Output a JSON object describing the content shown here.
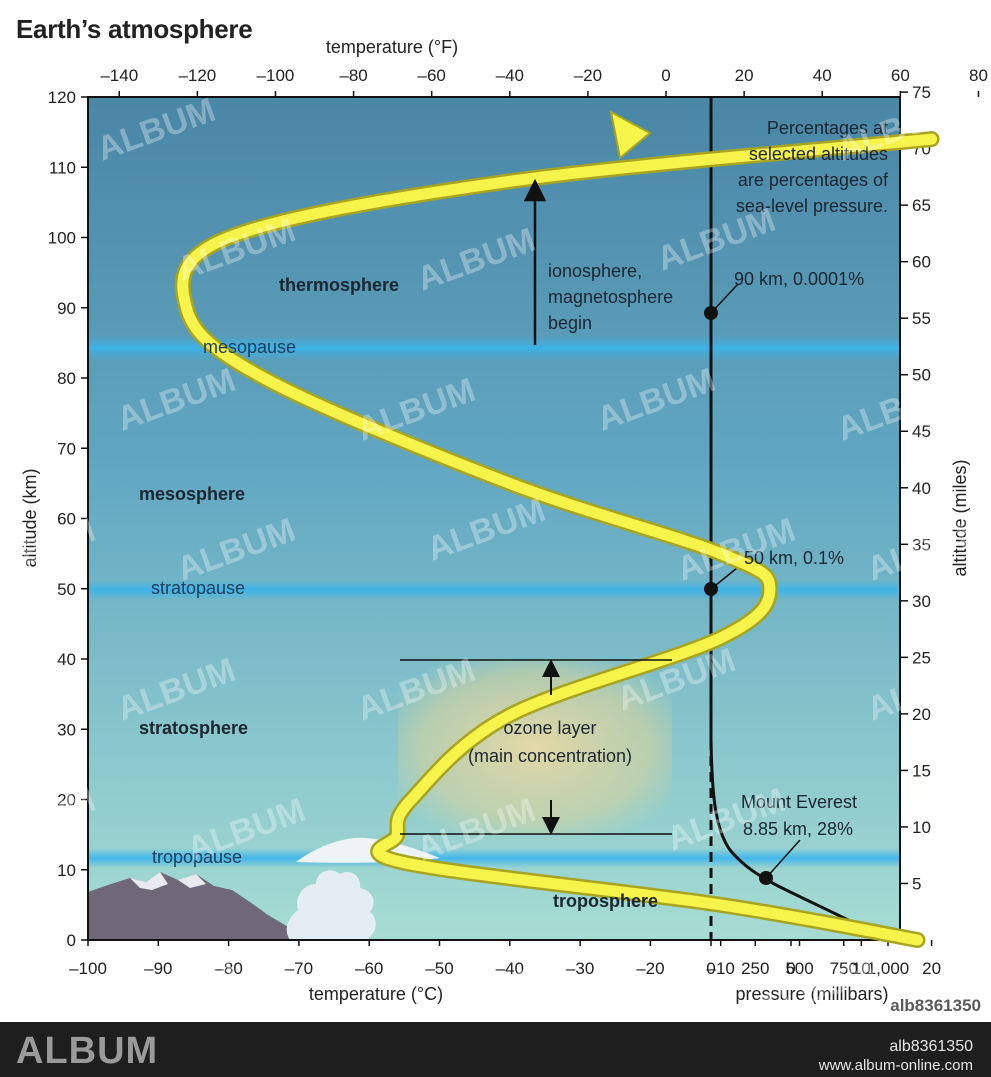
{
  "title": "Earth’s atmosphere",
  "axes": {
    "top_title": "temperature (°F)",
    "top_ticks": [
      "–140",
      "–120",
      "–100",
      "–80",
      "–60",
      "–40",
      "–20",
      "0",
      "20",
      "40",
      "60",
      "80"
    ],
    "bottom_title_c": "temperature (°C)",
    "bottom_ticks_c": [
      "–100",
      "–90",
      "–80",
      "–70",
      "–60",
      "–50",
      "–40",
      "–30",
      "–20",
      "–10",
      "0",
      "10",
      "20",
      "30"
    ],
    "bottom_title_p": "pressure (millibars)",
    "bottom_ticks_p": [
      "0",
      "250",
      "500",
      "750",
      "1,000"
    ],
    "left_title": "altitude (km)",
    "left_ticks": [
      "0",
      "10",
      "20",
      "30",
      "40",
      "50",
      "60",
      "70",
      "80",
      "90",
      "100",
      "110",
      "120"
    ],
    "right_title": "altitude (miles)",
    "right_ticks": [
      "0",
      "5",
      "10",
      "15",
      "20",
      "25",
      "30",
      "35",
      "40",
      "45",
      "50",
      "55",
      "60",
      "65",
      "70",
      "75"
    ]
  },
  "layers": {
    "thermosphere": "thermosphere",
    "mesosphere": "mesosphere",
    "stratosphere": "stratosphere",
    "troposphere": "troposphere",
    "mesopause": "mesopause",
    "stratopause": "stratopause",
    "tropopause": "tropopause"
  },
  "ionosphere_label": [
    "ionosphere,",
    "magnetosphere",
    "begin"
  ],
  "ozone_label": [
    "ozone layer",
    "(main concentration)"
  ],
  "pressure_note": [
    "Percentages at",
    "selected altitudes",
    "are percentages of",
    "sea-level pressure."
  ],
  "pressure_points": {
    "p90": "90 km, 0.0001%",
    "p50": "50 km, 0.1%",
    "everest_name": "Mount Everest",
    "everest_value": "8.85 km, 28%"
  },
  "footer": {
    "brand": "ALBUM",
    "code": "alb8361350",
    "url": "www.album-online.com",
    "corner_code": "alb8361350"
  },
  "watermark": "ALBUM",
  "colors": {
    "sky_top": "#4a86a6",
    "sky_bottom": "#9fd8d0",
    "curve": "#f6f34a",
    "curve_outline": "#a8a420",
    "pause_band": "#39b4ec"
  },
  "chart_data": {
    "type": "line",
    "x_axis": "temperature (°C)",
    "y_axis": "altitude (km)",
    "xlim": [
      -100,
      30
    ],
    "ylim": [
      0,
      120
    ],
    "temperature_profile": {
      "x": [
        18,
        -10,
        -55,
        -56,
        -54,
        -40,
        -10,
        -3,
        -10,
        -40,
        -75,
        -86,
        -80,
        -40,
        20
      ],
      "y": [
        0,
        5,
        11,
        15,
        20,
        32,
        43,
        50,
        55,
        65,
        80,
        90,
        100,
        108,
        114
      ]
    },
    "pressure_profile": {
      "x_axis": "pressure (millibars)",
      "points": [
        {
          "altitude_km": 90,
          "percent": 0.0001
        },
        {
          "altitude_km": 50,
          "percent": 0.1
        },
        {
          "altitude_km": 8.85,
          "percent": 28
        }
      ]
    },
    "boundaries_km": {
      "tropopause": 11,
      "stratopause": 50,
      "mesopause": 84
    },
    "ozone_layer_km": [
      15,
      40
    ]
  }
}
